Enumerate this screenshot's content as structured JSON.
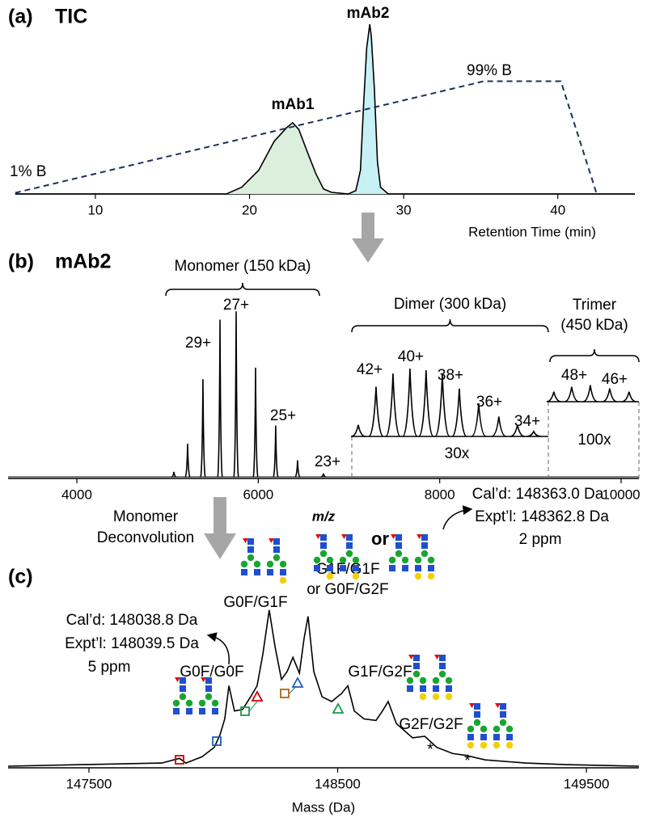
{
  "chart_data": [
    {
      "type": "line",
      "panel_label": "(a)",
      "title": "TIC",
      "xlabel": "Retention Time (min)",
      "xlim": [
        4.8,
        45
      ],
      "xticks": [
        10,
        20,
        30,
        40
      ],
      "ylim": [
        0,
        100
      ],
      "y2lim": [
        0,
        149
      ],
      "peak_fills": [
        "#dcefdc",
        "#c8f1f6"
      ],
      "series": [
        {
          "color": "#000000",
          "x": [
            4.8,
            18.5,
            19.5,
            20.6,
            21.6,
            22.4,
            22.8,
            23.2,
            23.7,
            24.3,
            24.8,
            25.3,
            26.4,
            26.9,
            27.2,
            27.4,
            27.6,
            27.8,
            27.9,
            28.1,
            28.3,
            28.5,
            29.0,
            45
          ],
          "values": [
            0,
            0,
            4,
            14,
            31,
            39,
            42,
            38,
            26,
            12,
            3,
            1,
            0,
            2,
            14,
            52,
            86,
            100,
            93,
            62,
            19,
            4,
            0,
            0
          ]
        },
        {
          "color": "#1f2f5f",
          "axis": "y2",
          "dashed": true,
          "x": [
            4.8,
            35.2,
            40.2,
            42.5
          ],
          "values": [
            1,
            99,
            99,
            1
          ]
        }
      ],
      "annotations": [
        "mAb1",
        "mAb2",
        "1% B",
        "99% B"
      ]
    },
    {
      "type": "spectrum",
      "panel_label": "(b)",
      "title": "mAb2",
      "xlabel": "m/z",
      "xlim": [
        3242,
        10196
      ],
      "xticks": [
        4000,
        6000,
        8000,
        10000
      ],
      "ylim": [
        0,
        105
      ],
      "series": [
        {
          "color": "#000000",
          "x": [
            5070,
            5221,
            5390,
            5578,
            5756,
            5970,
            6192,
            6433,
            6718
          ],
          "values": [
            3,
            20,
            59,
            95,
            100,
            66,
            31,
            10,
            2
          ]
        }
      ],
      "insets": [
        {
          "label": "30x",
          "x": [
            7102,
            7298,
            7485,
            7672,
            7850,
            8029,
            8216,
            8430,
            8652,
            8857,
            9036
          ],
          "values": [
            7,
            30,
            38,
            41,
            40,
            38,
            29,
            20,
            12,
            7,
            3
          ]
        },
        {
          "label": "100x",
          "x": [
            9258,
            9455,
            9660,
            9874,
            10087
          ],
          "values": [
            6,
            9,
            10,
            8,
            6
          ]
        }
      ],
      "groups": [
        "Monomer (150 kDa)",
        "Dimer (300 kDa)",
        [
          "Trimer",
          "(450 kDa)"
        ]
      ],
      "charge_labels": [
        "29+",
        "27+",
        "25+",
        "23+",
        "42+",
        "40+",
        "38+",
        "36+",
        "34+",
        "48+",
        "46+"
      ]
    },
    {
      "type": "line",
      "panel_label": "(c)",
      "xlabel": "Mass (Da)",
      "xlim": [
        147175,
        149711
      ],
      "xticks": [
        147500,
        148500,
        149500
      ],
      "ylim": [
        0,
        105
      ],
      "series": [
        {
          "color": "#000000",
          "x": [
            147175,
            147467,
            147793,
            147864,
            147890,
            147955,
            148004,
            148027,
            148046,
            148063,
            148085,
            148118,
            148150,
            148176,
            148199,
            148225,
            148248,
            148274,
            148297,
            148320,
            148346,
            148365,
            148381,
            148404,
            148437,
            148476,
            148515,
            148541,
            148567,
            148606,
            148654,
            148680,
            148703,
            148736,
            148801,
            148850,
            148898,
            148963,
            149012,
            149093,
            149256,
            149419,
            149711
          ],
          "values": [
            1,
            2,
            3,
            6,
            3,
            7,
            13,
            21,
            31,
            52,
            36,
            37,
            45,
            52,
            72,
            100,
            77,
            56,
            61,
            70,
            60,
            82,
            96,
            61,
            45,
            42,
            47,
            52,
            36,
            31,
            30,
            36,
            42,
            28,
            19,
            20,
            13,
            9,
            8,
            5,
            3,
            2,
            1
          ]
        }
      ],
      "glycoforms": [
        {
          "label": "G0F/G1F",
          "color": "#1f5fb0"
        },
        {
          "label": [
            "G1F/G1F",
            "or G0F/G2F"
          ],
          "color": "#169a4a"
        },
        {
          "label": "G0F/G0F",
          "color": "#d40000"
        },
        {
          "label": "G1F/G2F",
          "color": "#b8600f"
        },
        {
          "label": "G2F/G2F",
          "color": "#6a2c91"
        }
      ],
      "or_label": "or",
      "mass_notes": [
        [
          "Cal’d:  148038.8 Da",
          "Expt’l:  148039.5 Da",
          "5 ppm"
        ],
        [
          "Cal’d:  148363.0 Da",
          "Expt’l:  148362.8 Da",
          "2 ppm"
        ]
      ],
      "markers": [
        "*",
        "*"
      ]
    }
  ],
  "arrow_label": [
    "Monomer",
    "Deconvolution"
  ]
}
